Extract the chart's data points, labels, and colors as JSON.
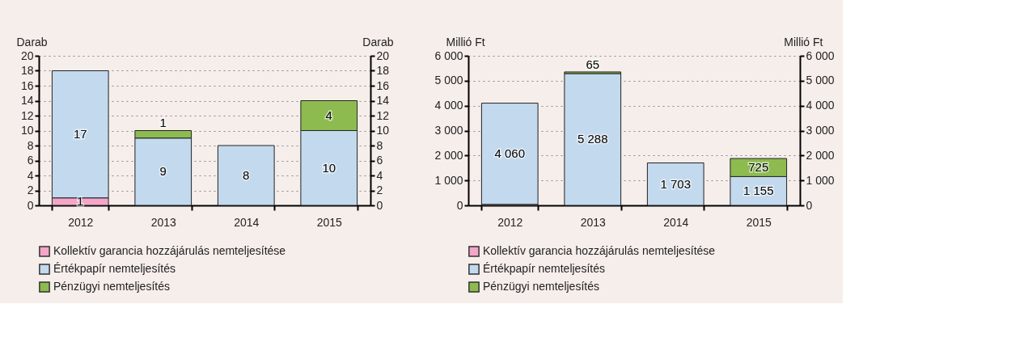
{
  "chart_data": [
    {
      "type": "bar",
      "stacked": true,
      "ylabel": "Darab",
      "y2label": "Darab",
      "categories": [
        "2012",
        "2013",
        "2014",
        "2015"
      ],
      "series": [
        {
          "name": "Kollektív garancia hozzájárulás nemteljesítése",
          "color": "#f4a6c8",
          "values": [
            1,
            null,
            null,
            null
          ]
        },
        {
          "name": "Értékpapír nemteljesítés",
          "color": "#c3d9ee",
          "values": [
            17,
            9,
            8,
            10
          ]
        },
        {
          "name": "Pénzügyi nemteljesítés",
          "color": "#8dbb4f",
          "values": [
            null,
            1,
            null,
            4
          ]
        }
      ],
      "ylim": [
        0,
        20
      ],
      "yticks": [
        0,
        2,
        4,
        6,
        8,
        10,
        12,
        14,
        16,
        18,
        20
      ],
      "y2lim": [
        0,
        20
      ],
      "y2ticks": [
        0,
        2,
        4,
        6,
        8,
        10,
        12,
        14,
        16,
        18,
        20
      ],
      "data_labels": true,
      "grid": "y",
      "legend": "bottom"
    },
    {
      "type": "bar",
      "stacked": true,
      "ylabel": "Millió Ft",
      "y2label": "Millió Ft",
      "categories": [
        "2012",
        "2013",
        "2014",
        "2015"
      ],
      "series": [
        {
          "name": "Kollektív garancia hozzájárulás nemteljesítése",
          "color": "#f4a6c8",
          "values": [
            40,
            null,
            null,
            null
          ],
          "value_labels": [
            null,
            null,
            null,
            null
          ]
        },
        {
          "name": "Értékpapír nemteljesítés",
          "color": "#c3d9ee",
          "values": [
            4060,
            5288,
            1703,
            1155
          ],
          "value_labels": [
            "4 060",
            "5 288",
            "1 703",
            "1 155"
          ]
        },
        {
          "name": "Pénzügyi nemteljesítés",
          "color": "#8dbb4f",
          "values": [
            null,
            65,
            null,
            725
          ],
          "value_labels": [
            null,
            "65",
            null,
            "725"
          ]
        }
      ],
      "ylim": [
        0,
        6000
      ],
      "yticks": [
        0,
        {
          "value": 1000,
          "label": "1 000"
        },
        {
          "value": 2000,
          "label": "2 000"
        },
        {
          "value": 3000,
          "label": "3 000"
        },
        {
          "value": 4000,
          "label": "4 000"
        },
        {
          "value": 5000,
          "label": "5 000"
        },
        {
          "value": 6000,
          "label": "6 000"
        }
      ],
      "y2lim": [
        0,
        6000
      ],
      "y2ticks": [
        0,
        {
          "value": 1000,
          "label": "1 000"
        },
        {
          "value": 2000,
          "label": "2 000"
        },
        {
          "value": 3000,
          "label": "3 000"
        },
        {
          "value": 4000,
          "label": "4 000"
        },
        {
          "value": 5000,
          "label": "5 000"
        },
        {
          "value": 6000,
          "label": "6 000"
        }
      ],
      "grid": "y",
      "legend": "bottom"
    }
  ]
}
